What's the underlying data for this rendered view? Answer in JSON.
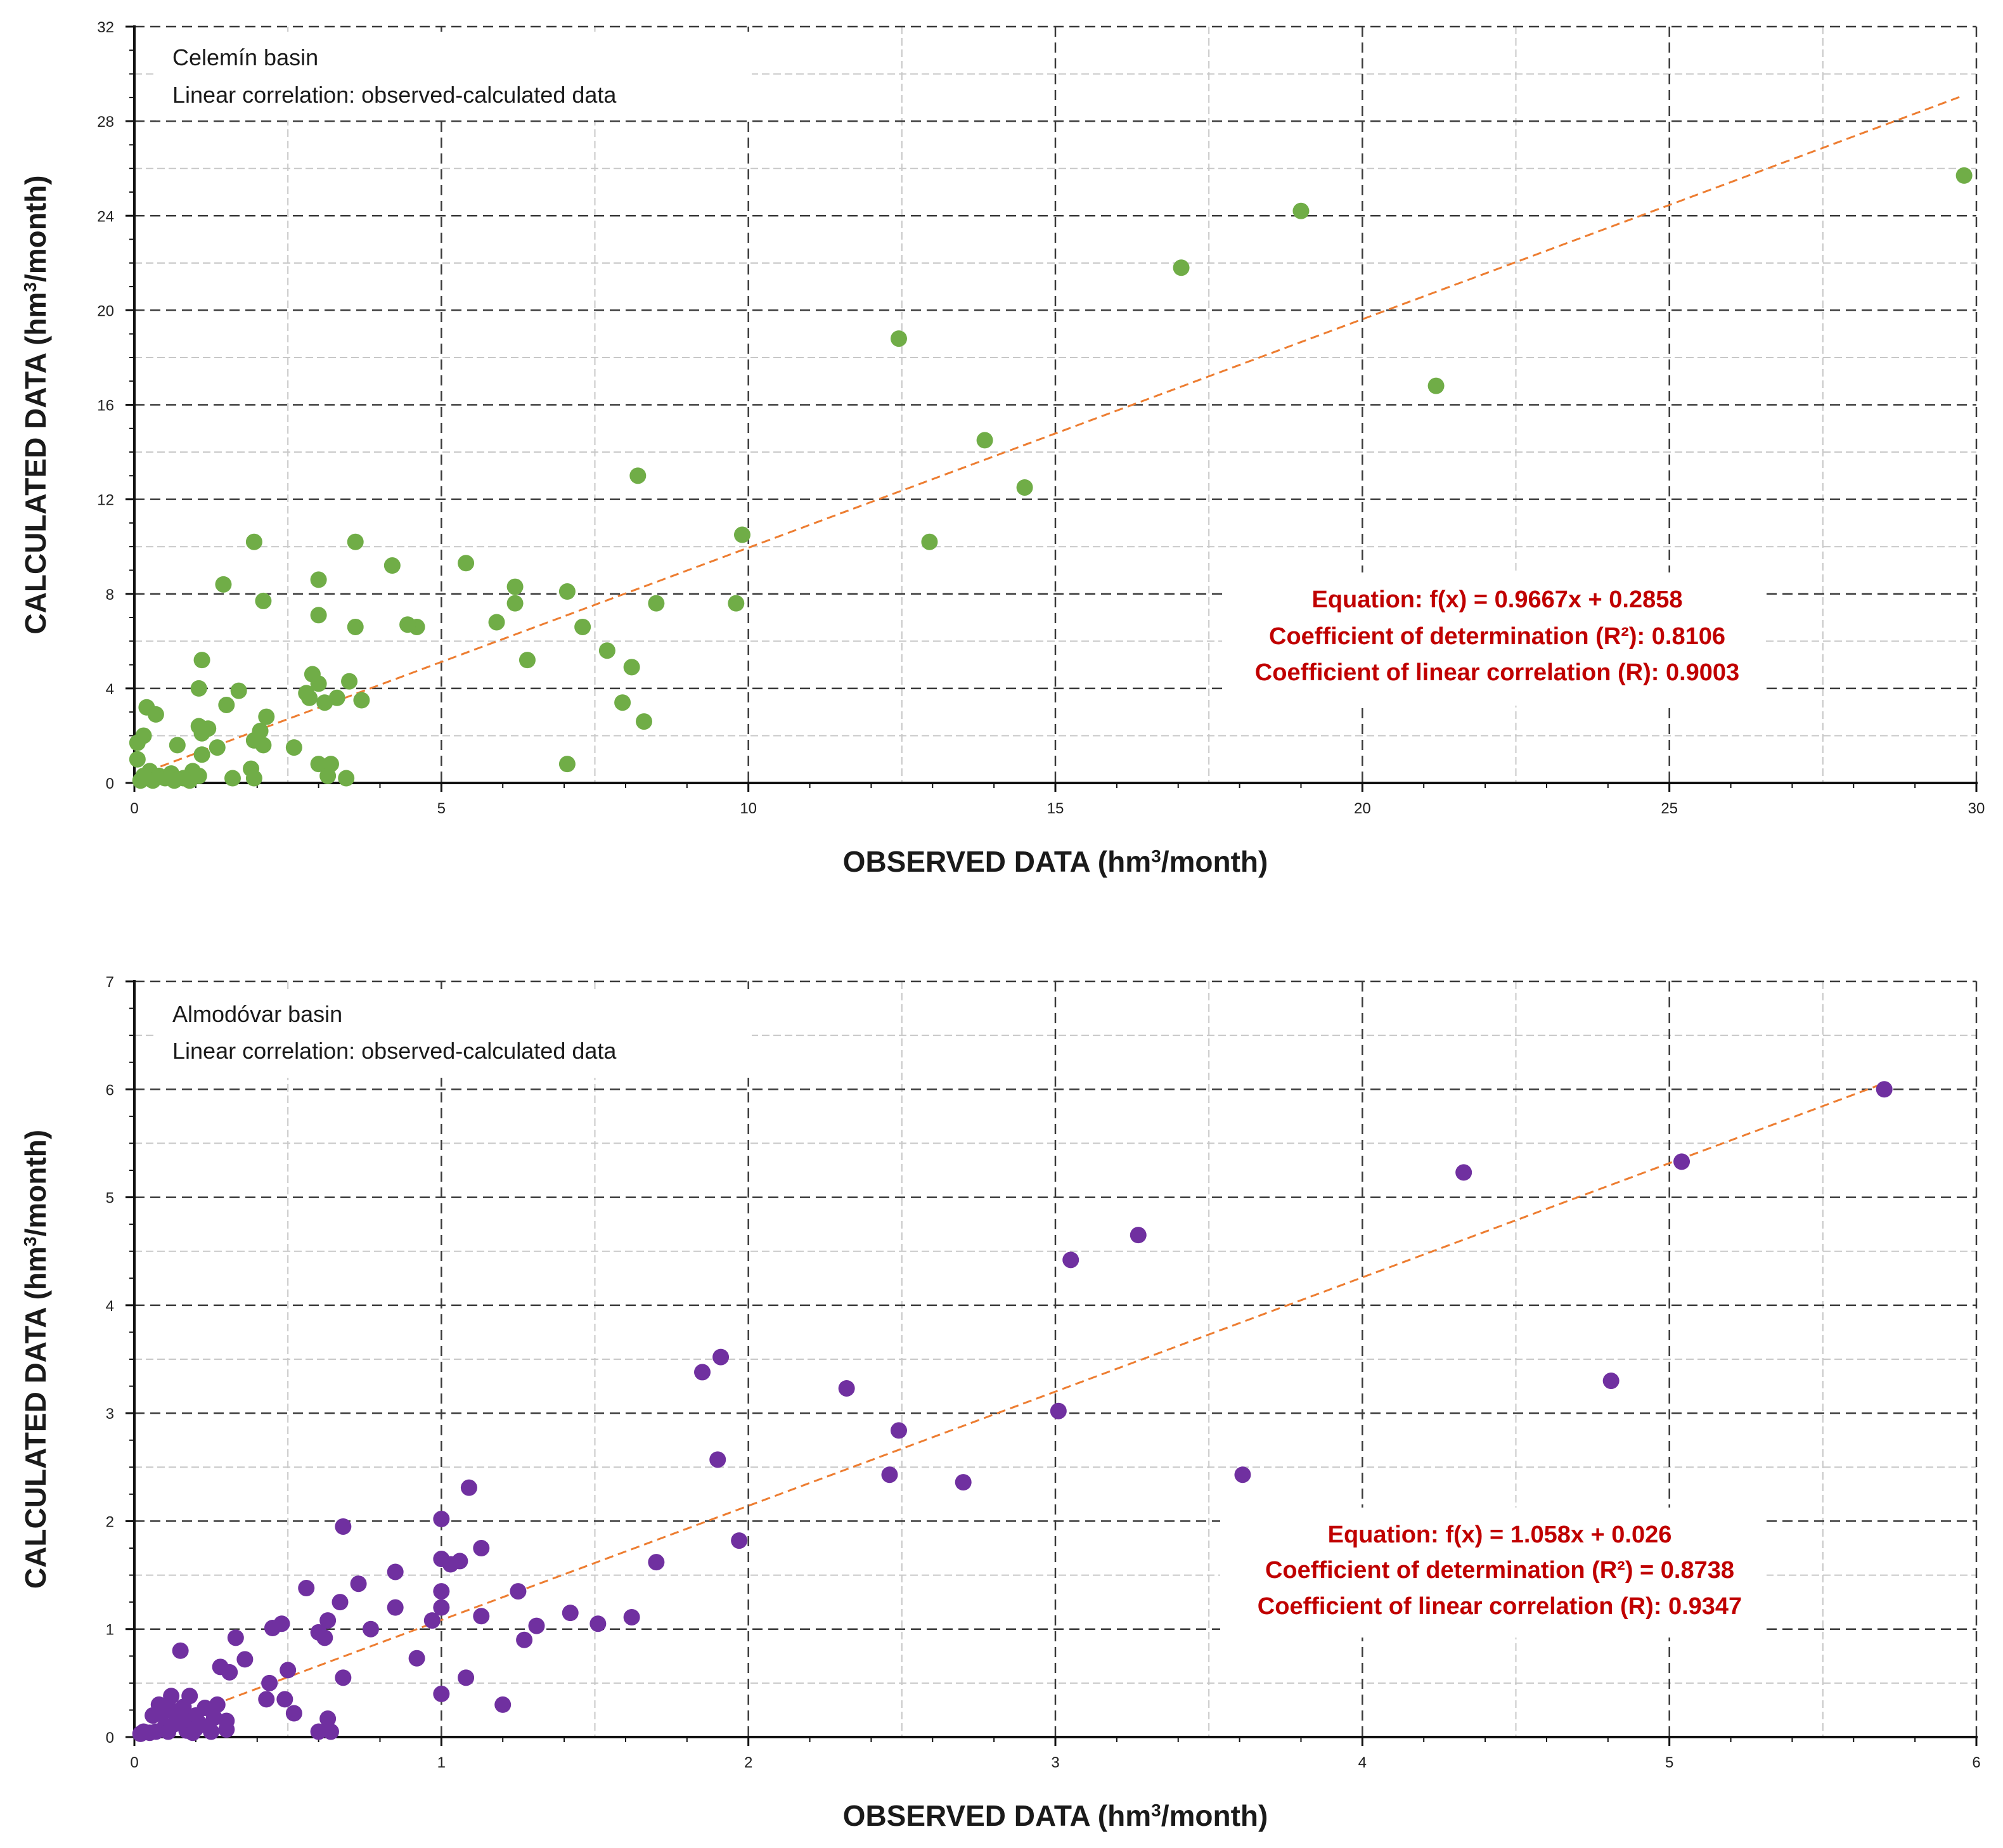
{
  "chart_data": [
    {
      "type": "scatter",
      "title": "Celemín basin",
      "subtitle": "Linear correlation: observed-calculated data",
      "xlabel": "OBSERVED DATA (hm³/month)",
      "ylabel": "CALCULATED DATA (hm³/month)",
      "xlabel_parts": [
        "OBSERVED DATA (hm",
        "3",
        "/month)"
      ],
      "ylabel_parts": [
        "CALCULATED DATA (hm",
        "3",
        "/month)"
      ],
      "xlim": [
        0,
        30
      ],
      "ylim": [
        0,
        32
      ],
      "xticks": [
        0,
        5,
        10,
        15,
        20,
        25,
        30
      ],
      "yticks": [
        0,
        4,
        8,
        12,
        16,
        20,
        24,
        28,
        32
      ],
      "x_minor_step": 2.5,
      "y_minor_step": 2,
      "grid": true,
      "stats_box_position": "right, mid-height",
      "equation": "Equation: f(x) = 0.9667x + 0.2858",
      "r2_text": "Coefficient of determination (R²): 0.8106",
      "r_text": "Coefficient of linear correlation (R): 0.9003",
      "trendline": {
        "slope": 0.9667,
        "intercept": 0.2858,
        "x_range": [
          0,
          29.8
        ]
      },
      "marker_color": "#70ad47",
      "trend_color": "#ed7d31",
      "stats_color": "#c00000",
      "series": [
        {
          "name": "observed-calculated",
          "points": [
            [
              29.8,
              25.7
            ],
            [
              19,
              24.2
            ],
            [
              17.05,
              21.8
            ],
            [
              12.45,
              18.8
            ],
            [
              21.2,
              16.8
            ],
            [
              13.85,
              14.5
            ],
            [
              14.5,
              12.5
            ],
            [
              12.95,
              10.2
            ],
            [
              8.2,
              13
            ],
            [
              9.9,
              10.5
            ],
            [
              9.8,
              7.6
            ],
            [
              8.5,
              7.6
            ],
            [
              7.05,
              8.1
            ],
            [
              7.3,
              6.6
            ],
            [
              7.7,
              5.6
            ],
            [
              8.1,
              4.9
            ],
            [
              7.95,
              3.4
            ],
            [
              8.3,
              2.6
            ],
            [
              7.05,
              0.8
            ],
            [
              6.2,
              8.3
            ],
            [
              6.2,
              7.6
            ],
            [
              5.9,
              6.8
            ],
            [
              6.4,
              5.2
            ],
            [
              5.4,
              9.3
            ],
            [
              4.6,
              6.6
            ],
            [
              4.45,
              6.7
            ],
            [
              4.2,
              9.2
            ],
            [
              3.6,
              10.2
            ],
            [
              3.6,
              6.6
            ],
            [
              3.5,
              4.3
            ],
            [
              3.7,
              3.5
            ],
            [
              3,
              8.6
            ],
            [
              3,
              7.1
            ],
            [
              2.9,
              4.6
            ],
            [
              3,
              4.2
            ],
            [
              2.8,
              3.8
            ],
            [
              2.85,
              3.6
            ],
            [
              3.1,
              3.4
            ],
            [
              3.3,
              3.6
            ],
            [
              3,
              0.8
            ],
            [
              3.2,
              0.8
            ],
            [
              3.15,
              0.3
            ],
            [
              3.45,
              0.2
            ],
            [
              2.6,
              1.5
            ],
            [
              2.1,
              7.7
            ],
            [
              1.95,
              10.2
            ],
            [
              2.15,
              2.8
            ],
            [
              2.05,
              2.2
            ],
            [
              2.1,
              1.6
            ],
            [
              1.95,
              1.8
            ],
            [
              1.9,
              0.6
            ],
            [
              1.95,
              0.2
            ],
            [
              1.45,
              8.4
            ],
            [
              1.7,
              3.9
            ],
            [
              1.5,
              3.3
            ],
            [
              1.1,
              5.2
            ],
            [
              1.05,
              4
            ],
            [
              1.05,
              2.4
            ],
            [
              1.2,
              2.3
            ],
            [
              1.1,
              2.1
            ],
            [
              1.35,
              1.5
            ],
            [
              1.1,
              1.2
            ],
            [
              1.6,
              0.2
            ],
            [
              0.2,
              3.2
            ],
            [
              0.35,
              2.9
            ],
            [
              0.05,
              1.7
            ],
            [
              0.15,
              2
            ],
            [
              0.05,
              1
            ],
            [
              0.25,
              0.5
            ],
            [
              0.4,
              0.3
            ],
            [
              0.7,
              1.6
            ],
            [
              0.95,
              0.5
            ],
            [
              0.1,
              0.1
            ],
            [
              0.3,
              0.1
            ],
            [
              0.5,
              0.2
            ],
            [
              0.6,
              0.4
            ],
            [
              0.8,
              0.2
            ],
            [
              0.9,
              0.1
            ],
            [
              1.05,
              0.3
            ],
            [
              0.15,
              0.3
            ],
            [
              0.65,
              0.1
            ]
          ]
        }
      ]
    },
    {
      "type": "scatter",
      "title": "Almodóvar basin",
      "subtitle": "Linear correlation: observed-calculated data",
      "xlabel": "OBSERVED DATA (hm³/month)",
      "ylabel": "CALCULATED DATA (hm³/month)",
      "xlabel_parts": [
        "OBSERVED DATA (hm",
        "3",
        "/month)"
      ],
      "ylabel_parts": [
        "CALCULATED DATA (hm",
        "3",
        "/month)"
      ],
      "xlim": [
        0,
        6
      ],
      "ylim": [
        0,
        7
      ],
      "xticks": [
        0,
        1,
        2,
        3,
        4,
        5,
        6
      ],
      "yticks": [
        0,
        1,
        2,
        3,
        4,
        5,
        6,
        7
      ],
      "x_minor_step": 0.5,
      "y_minor_step": 0.5,
      "grid": true,
      "stats_box_position": "right, lower-middle",
      "equation": "Equation: f(x) = 1.058x + 0.026",
      "r2_text": "Coefficient of determination (R²) = 0.8738",
      "r_text": "Coefficient of linear correlation (R): 0.9347",
      "trendline": {
        "slope": 1.058,
        "intercept": 0.026,
        "x_range": [
          0,
          5.7
        ]
      },
      "marker_color": "#7030a0",
      "trend_color": "#ed7d31",
      "stats_color": "#c00000",
      "series": [
        {
          "name": "observed-calculated",
          "points": [
            [
              5.7,
              6
            ],
            [
              5.04,
              5.33
            ],
            [
              4.33,
              5.23
            ],
            [
              4.81,
              3.3
            ],
            [
              3.27,
              4.65
            ],
            [
              3.05,
              4.42
            ],
            [
              3.01,
              3.02
            ],
            [
              3.61,
              2.43
            ],
            [
              2.7,
              2.36
            ],
            [
              2.49,
              2.84
            ],
            [
              2.46,
              2.43
            ],
            [
              2.32,
              3.23
            ],
            [
              1.91,
              3.52
            ],
            [
              1.85,
              3.38
            ],
            [
              1.9,
              2.57
            ],
            [
              1.97,
              1.82
            ],
            [
              1.7,
              1.62
            ],
            [
              1.62,
              1.11
            ],
            [
              1.51,
              1.05
            ],
            [
              1.42,
              1.15
            ],
            [
              1.31,
              1.03
            ],
            [
              1.27,
              0.9
            ],
            [
              1.25,
              1.35
            ],
            [
              1.2,
              0.3
            ],
            [
              1.13,
              1.75
            ],
            [
              1.13,
              1.12
            ],
            [
              1.09,
              2.31
            ],
            [
              1.08,
              0.55
            ],
            [
              1.06,
              1.63
            ],
            [
              1.03,
              1.6
            ],
            [
              1,
              2.02
            ],
            [
              1,
              1.65
            ],
            [
              1,
              1.35
            ],
            [
              1,
              1.2
            ],
            [
              0.97,
              1.08
            ],
            [
              1,
              0.4
            ],
            [
              0.92,
              0.73
            ],
            [
              0.85,
              1.53
            ],
            [
              0.85,
              1.2
            ],
            [
              0.77,
              1
            ],
            [
              0.73,
              1.42
            ],
            [
              0.68,
              1.95
            ],
            [
              0.67,
              1.25
            ],
            [
              0.68,
              0.55
            ],
            [
              0.63,
              1.08
            ],
            [
              0.62,
              0.92
            ],
            [
              0.6,
              0.97
            ],
            [
              0.56,
              1.38
            ],
            [
              0.63,
              0.17
            ],
            [
              0.6,
              0.05
            ],
            [
              0.64,
              0.05
            ],
            [
              0.52,
              0.22
            ],
            [
              0.5,
              0.62
            ],
            [
              0.49,
              0.35
            ],
            [
              0.48,
              1.05
            ],
            [
              0.45,
              1.01
            ],
            [
              0.44,
              0.5
            ],
            [
              0.43,
              0.35
            ],
            [
              0.36,
              0.72
            ],
            [
              0.33,
              0.92
            ],
            [
              0.31,
              0.6
            ],
            [
              0.28,
              0.65
            ],
            [
              0.27,
              0.3
            ],
            [
              0.3,
              0.15
            ],
            [
              0.3,
              0.07
            ],
            [
              0.24,
              0.1
            ],
            [
              0.2,
              0.2
            ],
            [
              0.18,
              0.38
            ],
            [
              0.15,
              0.8
            ],
            [
              0.16,
              0.28
            ],
            [
              0.14,
              0.2
            ],
            [
              0.12,
              0.38
            ],
            [
              0.1,
              0.1
            ],
            [
              0.08,
              0.3
            ],
            [
              0.07,
              0.05
            ],
            [
              0.06,
              0.2
            ],
            [
              0.05,
              0.04
            ],
            [
              0.03,
              0.05
            ],
            [
              0.02,
              0.03
            ],
            [
              0.09,
              0.22
            ],
            [
              0.11,
              0.05
            ],
            [
              0.13,
              0.12
            ],
            [
              0.17,
              0.06
            ],
            [
              0.19,
              0.04
            ],
            [
              0.21,
              0.13
            ],
            [
              0.23,
              0.27
            ],
            [
              0.25,
              0.05
            ],
            [
              0.2,
              0.08
            ],
            [
              0.16,
              0.16
            ],
            [
              0.12,
              0.25
            ],
            [
              0.26,
              0.18
            ]
          ]
        }
      ]
    }
  ]
}
